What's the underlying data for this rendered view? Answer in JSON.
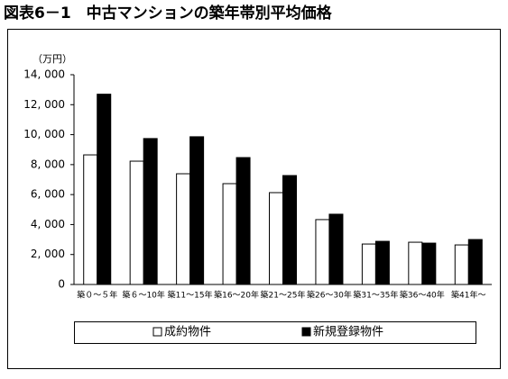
{
  "chart_data": {
    "type": "bar",
    "title": "図表6－1　中古マンションの築年帯別平均価格",
    "y_unit": "（万円）",
    "categories": [
      "築０～５年",
      "築６～10年",
      "築11～15年",
      "築16～20年",
      "築21～25年",
      "築26～30年",
      "築31～35年",
      "築36～40年",
      "築41年～"
    ],
    "series": [
      {
        "name": "成約物件",
        "color": "#ffffff",
        "values": [
          8650,
          8230,
          7390,
          6730,
          6130,
          4330,
          2700,
          2820,
          2640
        ]
      },
      {
        "name": "新規登録物件",
        "color": "#000000",
        "values": [
          12700,
          9740,
          9860,
          8470,
          7270,
          4690,
          2880,
          2760,
          3000
        ]
      }
    ],
    "ylim": [
      0,
      14000
    ],
    "yticks": [
      0,
      {
        "value": 2000,
        "label": "2, 000"
      },
      {
        "value": 4000,
        "label": "4, 000"
      },
      {
        "value": 6000,
        "label": "6, 000"
      },
      {
        "value": 8000,
        "label": "8, 000"
      },
      {
        "value": 10000,
        "label": "10, 000"
      },
      {
        "value": 12000,
        "label": "12, 000"
      },
      {
        "value": 14000,
        "label": "14, 000"
      }
    ],
    "grid": false,
    "legend": "bottom"
  }
}
